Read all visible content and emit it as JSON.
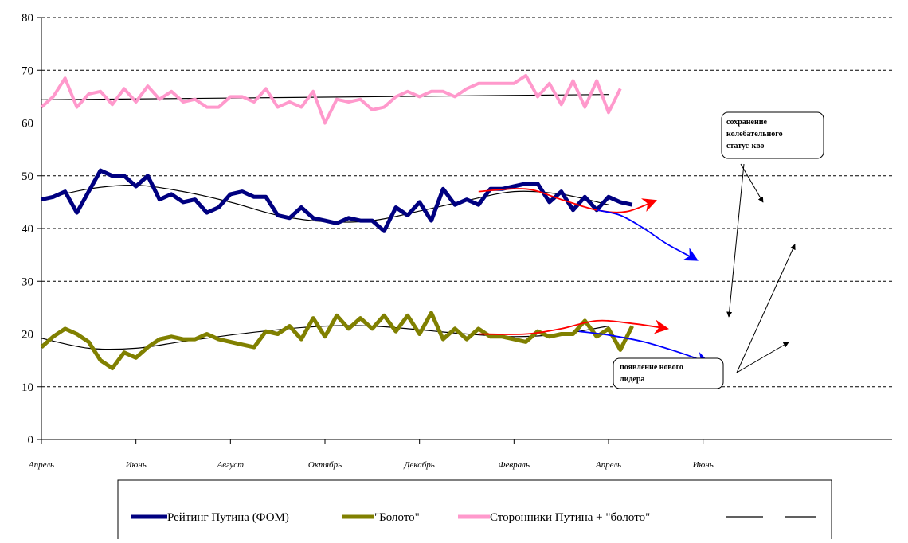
{
  "chart_data": {
    "type": "line",
    "ylim": [
      0,
      80
    ],
    "yticks": [
      0,
      10,
      20,
      30,
      40,
      50,
      60,
      70,
      80
    ],
    "xlim": [
      0,
      72
    ],
    "xticks": [
      {
        "x": 0,
        "label": "Апрель"
      },
      {
        "x": 8,
        "label": "Июнь"
      },
      {
        "x": 16,
        "label": "Август"
      },
      {
        "x": 24,
        "label": "Октябрь"
      },
      {
        "x": 32,
        "label": "Декабрь"
      },
      {
        "x": 40,
        "label": "Февраль"
      },
      {
        "x": 48,
        "label": "Апрель"
      },
      {
        "x": 56,
        "label": "Июнь"
      }
    ],
    "grid": "horizontal-dashed",
    "series": [
      {
        "name": "Рейтинг Путина (ФОМ)",
        "color": "#000080",
        "values": [
          45.5,
          46,
          47,
          43,
          47,
          51,
          50,
          50,
          48,
          50,
          45.5,
          46.5,
          45,
          45.5,
          43,
          44,
          46.5,
          47,
          46,
          46,
          42.5,
          42,
          44,
          42,
          41.5,
          41,
          42,
          41.5,
          41.5,
          39.5,
          44,
          42.5,
          45,
          41.5,
          47.5,
          44.5,
          45.5,
          44.5,
          47.5,
          47.5,
          48,
          48.5,
          48.5,
          45,
          47,
          43.5,
          46,
          43.5,
          46,
          45,
          44.5
        ]
      },
      {
        "name": "\"Болото\"",
        "color": "#808000",
        "values": [
          17.5,
          19.5,
          21,
          20,
          18.5,
          15,
          13.5,
          16.5,
          15.5,
          17.5,
          19,
          19.5,
          19,
          19,
          20,
          19,
          18.5,
          18,
          17.5,
          20.5,
          20,
          21.5,
          19,
          23,
          19.5,
          23.5,
          21,
          23,
          21,
          23.5,
          20.5,
          23.5,
          20,
          24,
          19,
          21,
          19,
          21,
          19.5,
          19.5,
          19,
          18.5,
          20.5,
          19.5,
          20,
          20,
          22.5,
          19.5,
          21,
          17,
          21.5
        ]
      },
      {
        "name": "Сторонники Путина + \"болото\"",
        "color": "#FF99CC",
        "values": [
          63,
          65,
          68.5,
          63,
          65.5,
          66,
          63.5,
          66.5,
          64,
          67,
          64.5,
          66,
          64,
          64.5,
          63,
          63,
          65,
          65,
          64,
          66.5,
          63,
          64,
          63,
          66,
          60,
          64.5,
          64,
          64.5,
          62.5,
          63,
          65,
          66,
          65,
          66,
          66,
          65,
          66.5,
          67.5,
          67.5,
          67.5,
          67.5,
          69,
          65,
          67.5,
          63.5,
          68,
          63,
          68,
          62,
          66.5
        ]
      },
      {
        "name": "",
        "color": "#000000",
        "kind": "trend",
        "points": [
          [
            0,
            64.4
          ],
          [
            48,
            65.4
          ]
        ]
      },
      {
        "name": "",
        "color": "#000000",
        "kind": "trend",
        "points": [
          [
            0,
            45.5
          ],
          [
            4,
            47.5
          ],
          [
            8,
            48.2
          ],
          [
            12,
            47
          ],
          [
            16,
            45
          ],
          [
            20,
            42.5
          ],
          [
            24,
            41.3
          ],
          [
            28,
            41.5
          ],
          [
            32,
            43.3
          ],
          [
            36,
            45.3
          ],
          [
            40,
            47
          ],
          [
            44,
            46.5
          ],
          [
            48,
            44.5
          ]
        ]
      },
      {
        "name": "",
        "color": "#000000",
        "kind": "trend",
        "points": [
          [
            0,
            19.2
          ],
          [
            4,
            17.3
          ],
          [
            8,
            17.3
          ],
          [
            12,
            18.6
          ],
          [
            16,
            19.8
          ],
          [
            20,
            20.8
          ],
          [
            24,
            21.5
          ],
          [
            28,
            21.5
          ],
          [
            32,
            20.8
          ],
          [
            36,
            20
          ],
          [
            40,
            19.5
          ],
          [
            44,
            20
          ],
          [
            48,
            21.5
          ]
        ]
      }
    ],
    "forecasts": [
      {
        "color": "#FF0000",
        "points": [
          [
            37,
            47
          ],
          [
            41,
            47.5
          ],
          [
            44,
            45.5
          ],
          [
            47,
            43.5
          ],
          [
            49.5,
            43.2
          ],
          [
            52,
            45.3
          ]
        ]
      },
      {
        "color": "#0000FF",
        "points": [
          [
            47,
            43.5
          ],
          [
            49,
            42.5
          ],
          [
            51,
            40
          ],
          [
            53,
            37
          ],
          [
            55.5,
            34
          ]
        ]
      },
      {
        "color": "#FF0000",
        "points": [
          [
            37,
            20
          ],
          [
            41,
            20
          ],
          [
            44,
            21
          ],
          [
            47,
            22.5
          ],
          [
            50,
            22
          ],
          [
            53,
            21
          ]
        ]
      },
      {
        "color": "#0000FF",
        "points": [
          [
            45.5,
            20.5
          ],
          [
            48,
            19.8
          ],
          [
            51,
            18.5
          ],
          [
            54,
            16.5
          ],
          [
            56.5,
            14.5
          ]
        ]
      }
    ],
    "annotations": [
      {
        "text": "сохранение колебательного статус-кво"
      },
      {
        "text": "появление нового лидера"
      }
    ]
  }
}
